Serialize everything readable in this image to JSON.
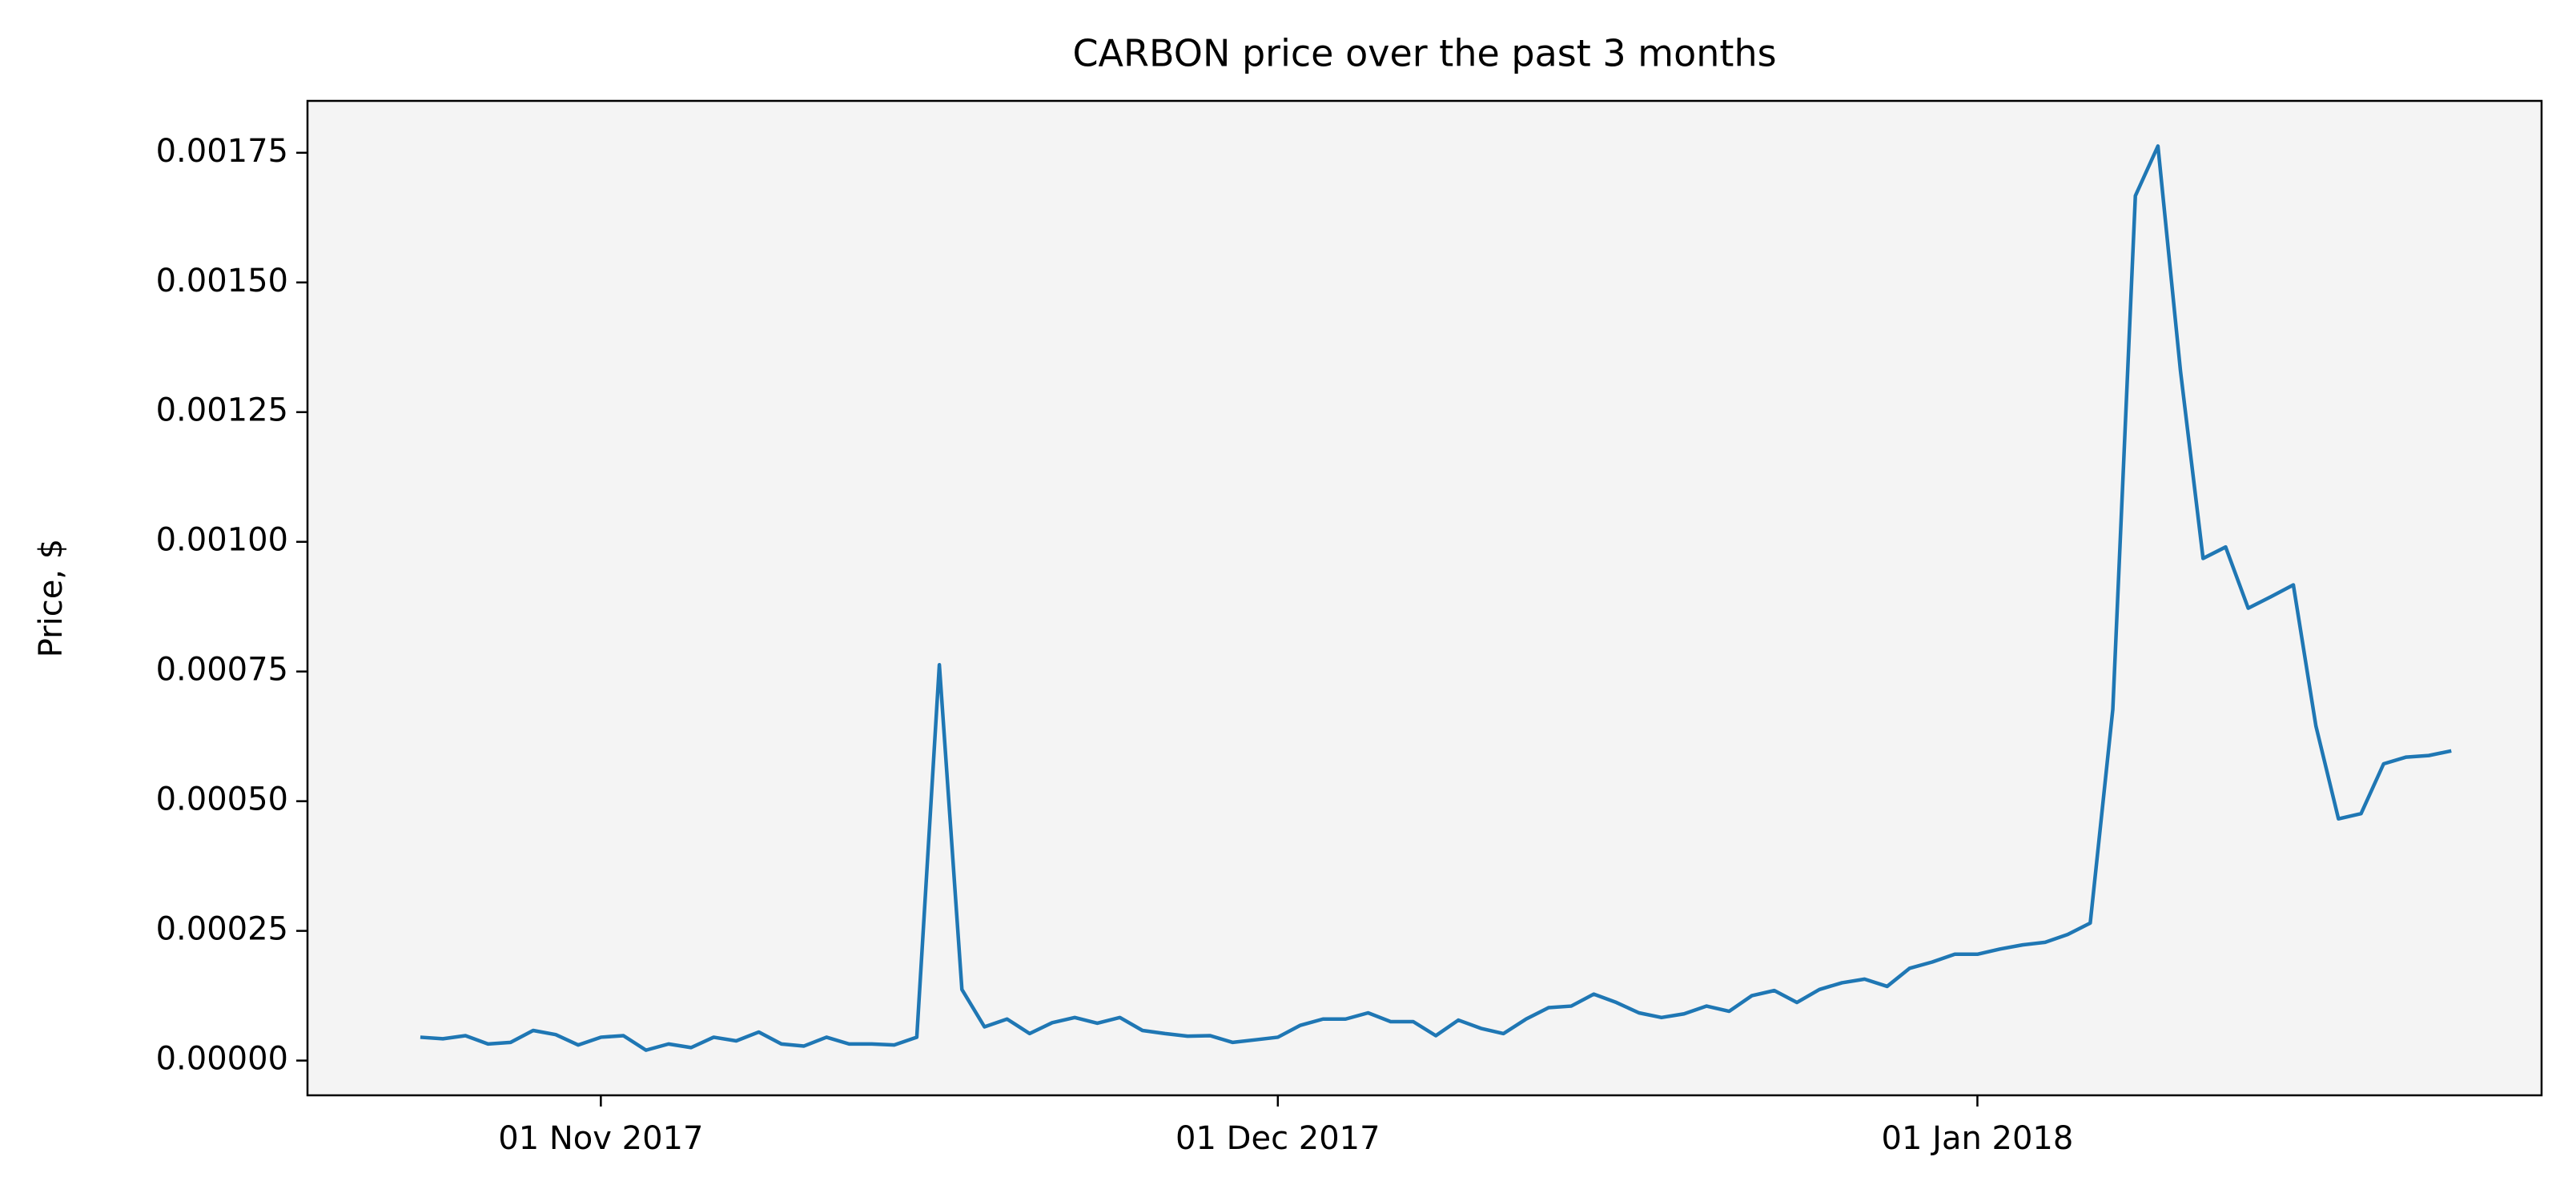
{
  "chart_data": {
    "type": "line",
    "title": "CARBON price over the past 3 months",
    "ylabel": "Price, $",
    "x": [
      "2017-10-24",
      "2017-10-25",
      "2017-10-26",
      "2017-10-27",
      "2017-10-28",
      "2017-10-29",
      "2017-10-30",
      "2017-10-31",
      "2017-11-01",
      "2017-11-02",
      "2017-11-03",
      "2017-11-04",
      "2017-11-05",
      "2017-11-06",
      "2017-11-07",
      "2017-11-08",
      "2017-11-09",
      "2017-11-10",
      "2017-11-11",
      "2017-11-12",
      "2017-11-13",
      "2017-11-14",
      "2017-11-15",
      "2017-11-16",
      "2017-11-17",
      "2017-11-18",
      "2017-11-19",
      "2017-11-20",
      "2017-11-21",
      "2017-11-22",
      "2017-11-23",
      "2017-11-24",
      "2017-11-25",
      "2017-11-26",
      "2017-11-27",
      "2017-11-28",
      "2017-11-29",
      "2017-11-30",
      "2017-12-01",
      "2017-12-02",
      "2017-12-03",
      "2017-12-04",
      "2017-12-05",
      "2017-12-06",
      "2017-12-07",
      "2017-12-08",
      "2017-12-09",
      "2017-12-10",
      "2017-12-11",
      "2017-12-12",
      "2017-12-13",
      "2017-12-14",
      "2017-12-15",
      "2017-12-16",
      "2017-12-17",
      "2017-12-18",
      "2017-12-19",
      "2017-12-20",
      "2017-12-21",
      "2017-12-22",
      "2017-12-23",
      "2017-12-24",
      "2017-12-25",
      "2017-12-26",
      "2017-12-27",
      "2017-12-28",
      "2017-12-29",
      "2017-12-30",
      "2017-12-31",
      "2018-01-01",
      "2018-01-02",
      "2018-01-03",
      "2018-01-04",
      "2018-01-05",
      "2018-01-06",
      "2018-01-07",
      "2018-01-08",
      "2018-01-09",
      "2018-01-10",
      "2018-01-11",
      "2018-01-12",
      "2018-01-13",
      "2018-01-14",
      "2018-01-15",
      "2018-01-16",
      "2018-01-17",
      "2018-01-18",
      "2018-01-19",
      "2018-01-20",
      "2018-01-21",
      "2018-01-22"
    ],
    "series": [
      {
        "name": "CARBON",
        "color": "#1f77b4",
        "values": [
          4.5e-05,
          4.2e-05,
          4.8e-05,
          3.2e-05,
          3.5e-05,
          5.8e-05,
          5e-05,
          3e-05,
          4.5e-05,
          4.8e-05,
          2e-05,
          3.2e-05,
          2.5e-05,
          4.5e-05,
          3.8e-05,
          5.5e-05,
          3.2e-05,
          2.8e-05,
          4.5e-05,
          3.2e-05,
          3.2e-05,
          3e-05,
          4.5e-05,
          0.000763,
          0.000137,
          6.5e-05,
          8e-05,
          5.2e-05,
          7.3e-05,
          8.3e-05,
          7.2e-05,
          8.3e-05,
          5.8e-05,
          5.2e-05,
          4.7e-05,
          4.8e-05,
          3.5e-05,
          4e-05,
          4.5e-05,
          6.8e-05,
          8e-05,
          8e-05,
          9.2e-05,
          7.5e-05,
          7.5e-05,
          4.8e-05,
          7.8e-05,
          6.2e-05,
          5.2e-05,
          8e-05,
          0.000102,
          0.000105,
          0.000128,
          0.000112,
          9.2e-05,
          8.3e-05,
          9e-05,
          0.000105,
          9.5e-05,
          0.000125,
          0.000135,
          0.000112,
          0.000137,
          0.00015,
          0.000157,
          0.000143,
          0.000178,
          0.00019,
          0.000205,
          0.000205,
          0.000215,
          0.000223,
          0.000228,
          0.000243,
          0.000265,
          0.000677,
          0.001667,
          0.001763,
          0.001329,
          0.000968,
          0.00099,
          0.000872,
          0.000894,
          0.000917,
          0.000645,
          0.000466,
          0.000476,
          0.000572,
          0.000585,
          0.000588,
          0.000597
        ]
      }
    ],
    "xlim": [
      "2017-10-19",
      "2018-01-26"
    ],
    "xticks": [
      {
        "value": "2017-11-01",
        "label": "01 Nov 2017"
      },
      {
        "value": "2017-12-01",
        "label": "01 Dec 2017"
      },
      {
        "value": "2018-01-01",
        "label": "01 Jan 2018"
      }
    ],
    "ylim": [
      -6.7e-05,
      0.00185
    ],
    "yticks": [
      {
        "value": 0,
        "label": "0.00000"
      },
      {
        "value": 0.00025,
        "label": "0.00025"
      },
      {
        "value": 0.0005,
        "label": "0.00050"
      },
      {
        "value": 0.00075,
        "label": "0.00075"
      },
      {
        "value": 0.001,
        "label": "0.00100"
      },
      {
        "value": 0.00125,
        "label": "0.00125"
      },
      {
        "value": 0.0015,
        "label": "0.00150"
      },
      {
        "value": 0.00175,
        "label": "0.00175"
      }
    ],
    "grid": false
  }
}
